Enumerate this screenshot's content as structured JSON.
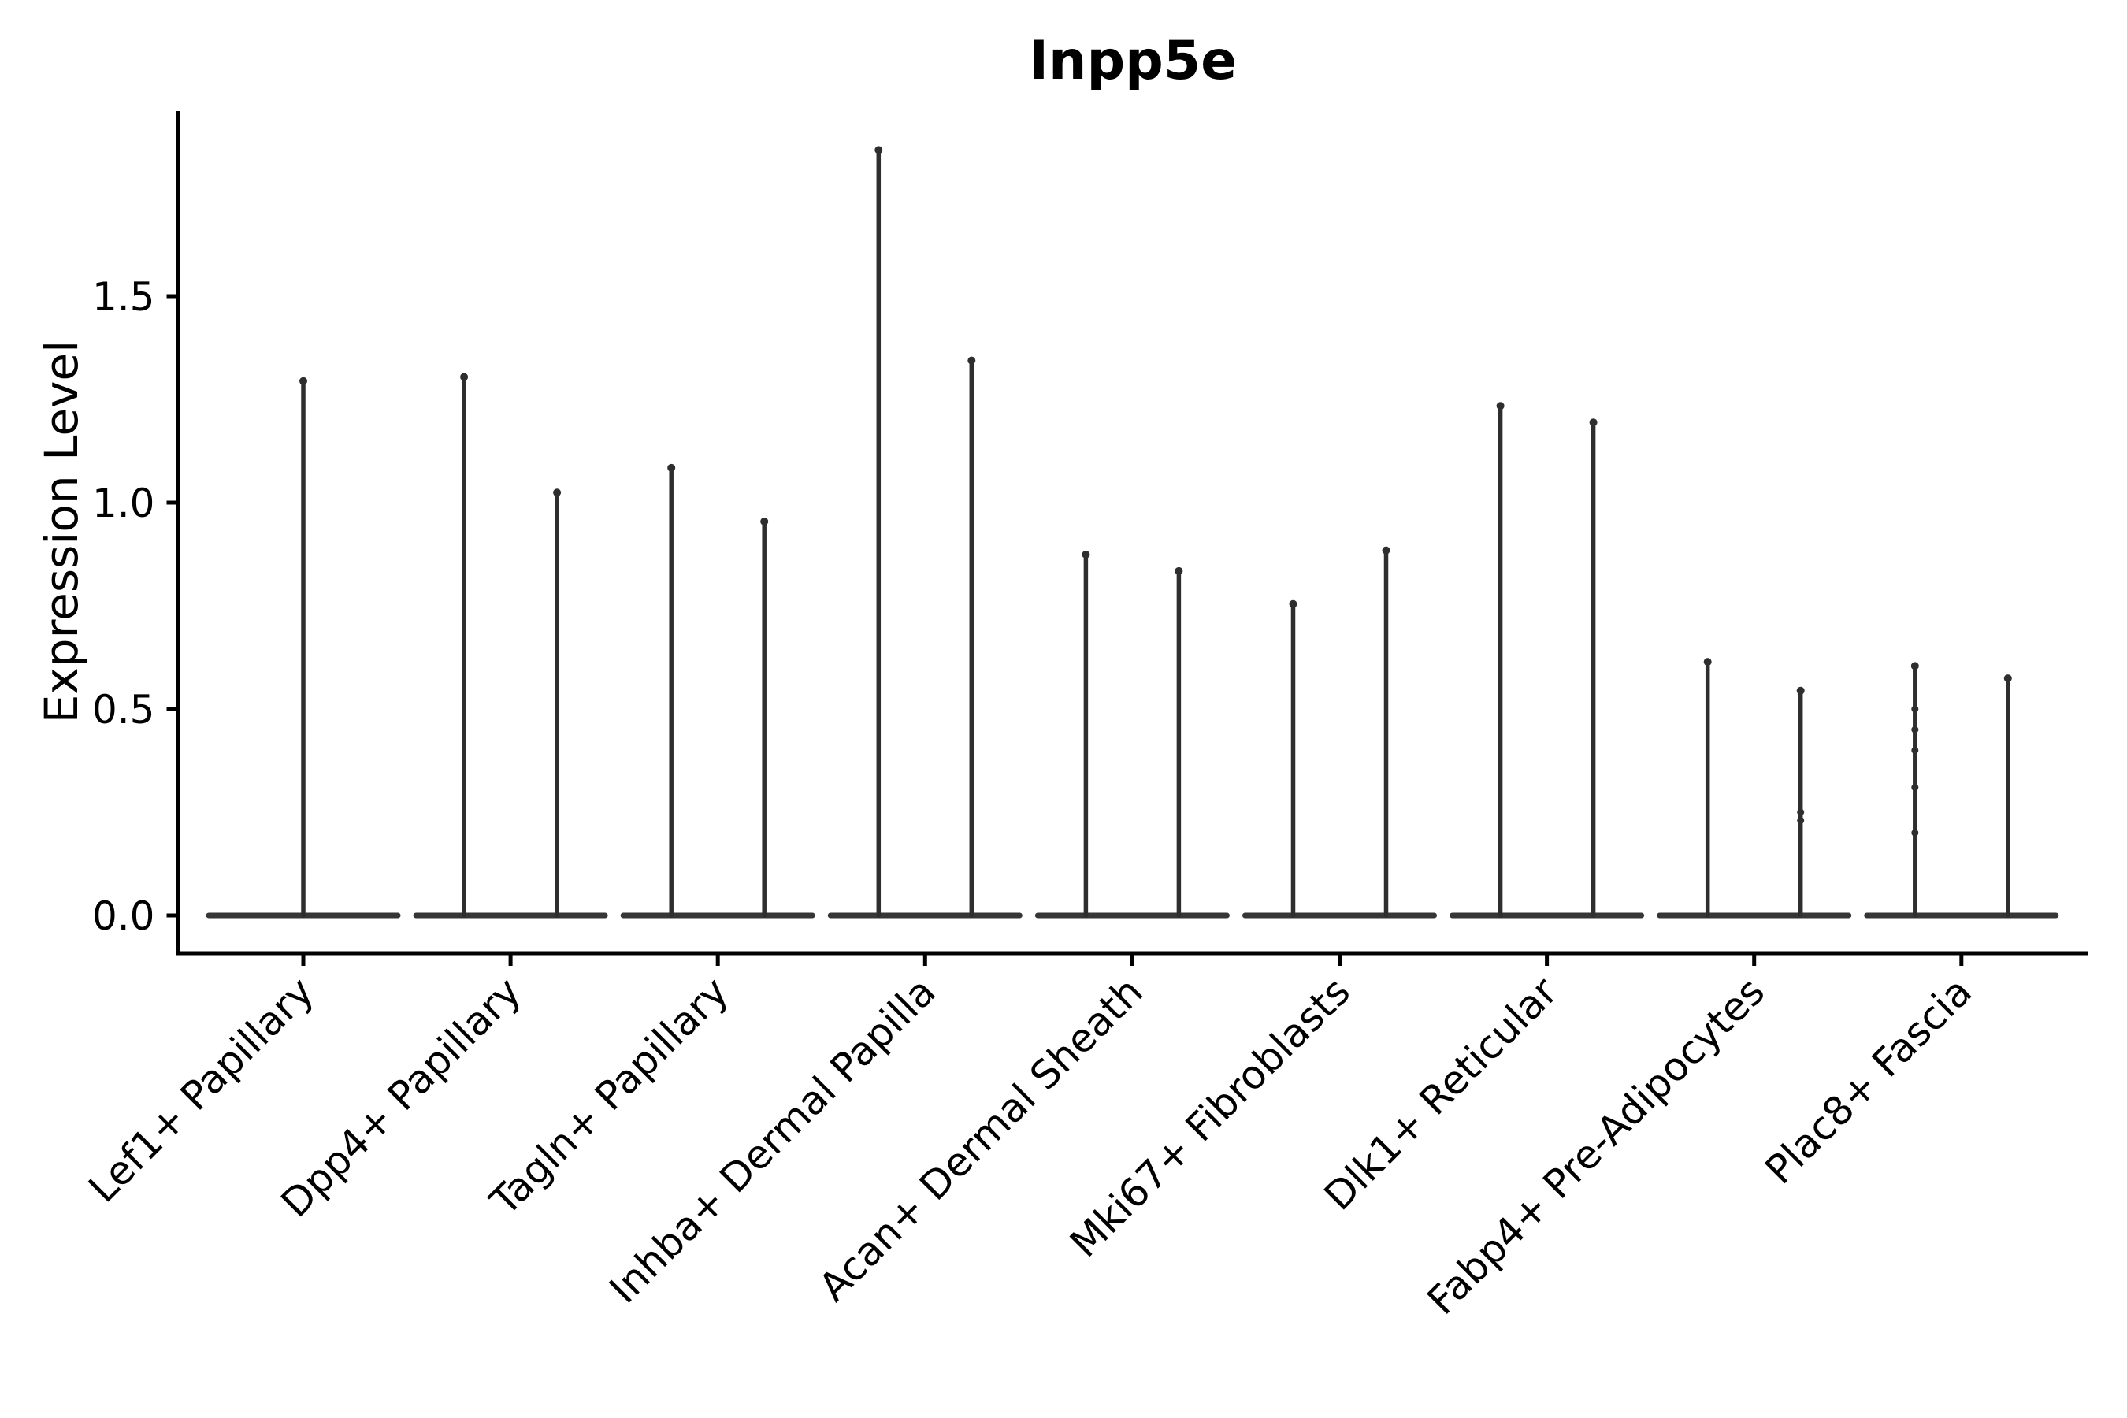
{
  "title": "Inpp5e",
  "colors": {
    "background": "#ffffff",
    "axis": "#000000",
    "text": "#000000",
    "violin": "#2e2e2e"
  },
  "chart_data": {
    "type": "violin",
    "title": "Inpp5e",
    "ylabel": "Expression Level",
    "xlabel": "",
    "grid": false,
    "legend_position": "none",
    "ylim": [
      -0.09,
      1.95
    ],
    "ytick_labels": [
      "0.0",
      "0.5",
      "1.0",
      "1.5"
    ],
    "ytick_values": [
      0.0,
      0.5,
      1.0,
      1.5
    ],
    "x_label_rotation_deg": 45,
    "categories": [
      "Lef1+ Papillary",
      "Dpp4+ Papillary",
      "Tagln+ Papillary",
      "Inhba+ Dermal Papilla",
      "Acan+ Dermal Sheath",
      "Mki67+ Fibroblasts",
      "Dlk1+ Reticular",
      "Fabp4+ Pre-Adipocytes",
      "Plac8+ Fascia"
    ],
    "violin_description": "Each category shows violin(s) with nearly all density at expression 0 (wide flat base) and a hair-thin density spike rising to the maximum expression value; categories 2-9 contain two side-by-side violins, category 1 a single centered violin.",
    "series": [
      {
        "label": "Lef1+ Papillary",
        "violins": [
          {
            "max": 1.3,
            "points": []
          }
        ]
      },
      {
        "label": "Dpp4+ Papillary",
        "violins": [
          {
            "max": 1.31,
            "points": []
          },
          {
            "max": 1.03,
            "points": []
          }
        ]
      },
      {
        "label": "Tagln+ Papillary",
        "violins": [
          {
            "max": 1.09,
            "points": []
          },
          {
            "max": 0.96,
            "points": []
          }
        ]
      },
      {
        "label": "Inhba+ Dermal Papilla",
        "violins": [
          {
            "max": 1.86,
            "points": []
          },
          {
            "max": 1.35,
            "points": []
          }
        ]
      },
      {
        "label": "Acan+ Dermal Sheath",
        "violins": [
          {
            "max": 0.88,
            "points": []
          },
          {
            "max": 0.84,
            "points": []
          }
        ]
      },
      {
        "label": "Mki67+ Fibroblasts",
        "violins": [
          {
            "max": 0.76,
            "points": []
          },
          {
            "max": 0.89,
            "points": []
          }
        ]
      },
      {
        "label": "Dlk1+ Reticular",
        "violins": [
          {
            "max": 1.24,
            "points": []
          },
          {
            "max": 1.2,
            "points": []
          }
        ]
      },
      {
        "label": "Fabp4+ Pre-Adipocytes",
        "violins": [
          {
            "max": 0.62,
            "points": []
          },
          {
            "max": 0.55,
            "points": [
              0.25,
              0.23
            ]
          }
        ]
      },
      {
        "label": "Plac8+ Fascia",
        "violins": [
          {
            "max": 0.61,
            "points": [
              0.5,
              0.45,
              0.4,
              0.31,
              0.2
            ]
          },
          {
            "max": 0.58,
            "points": []
          }
        ]
      }
    ]
  }
}
